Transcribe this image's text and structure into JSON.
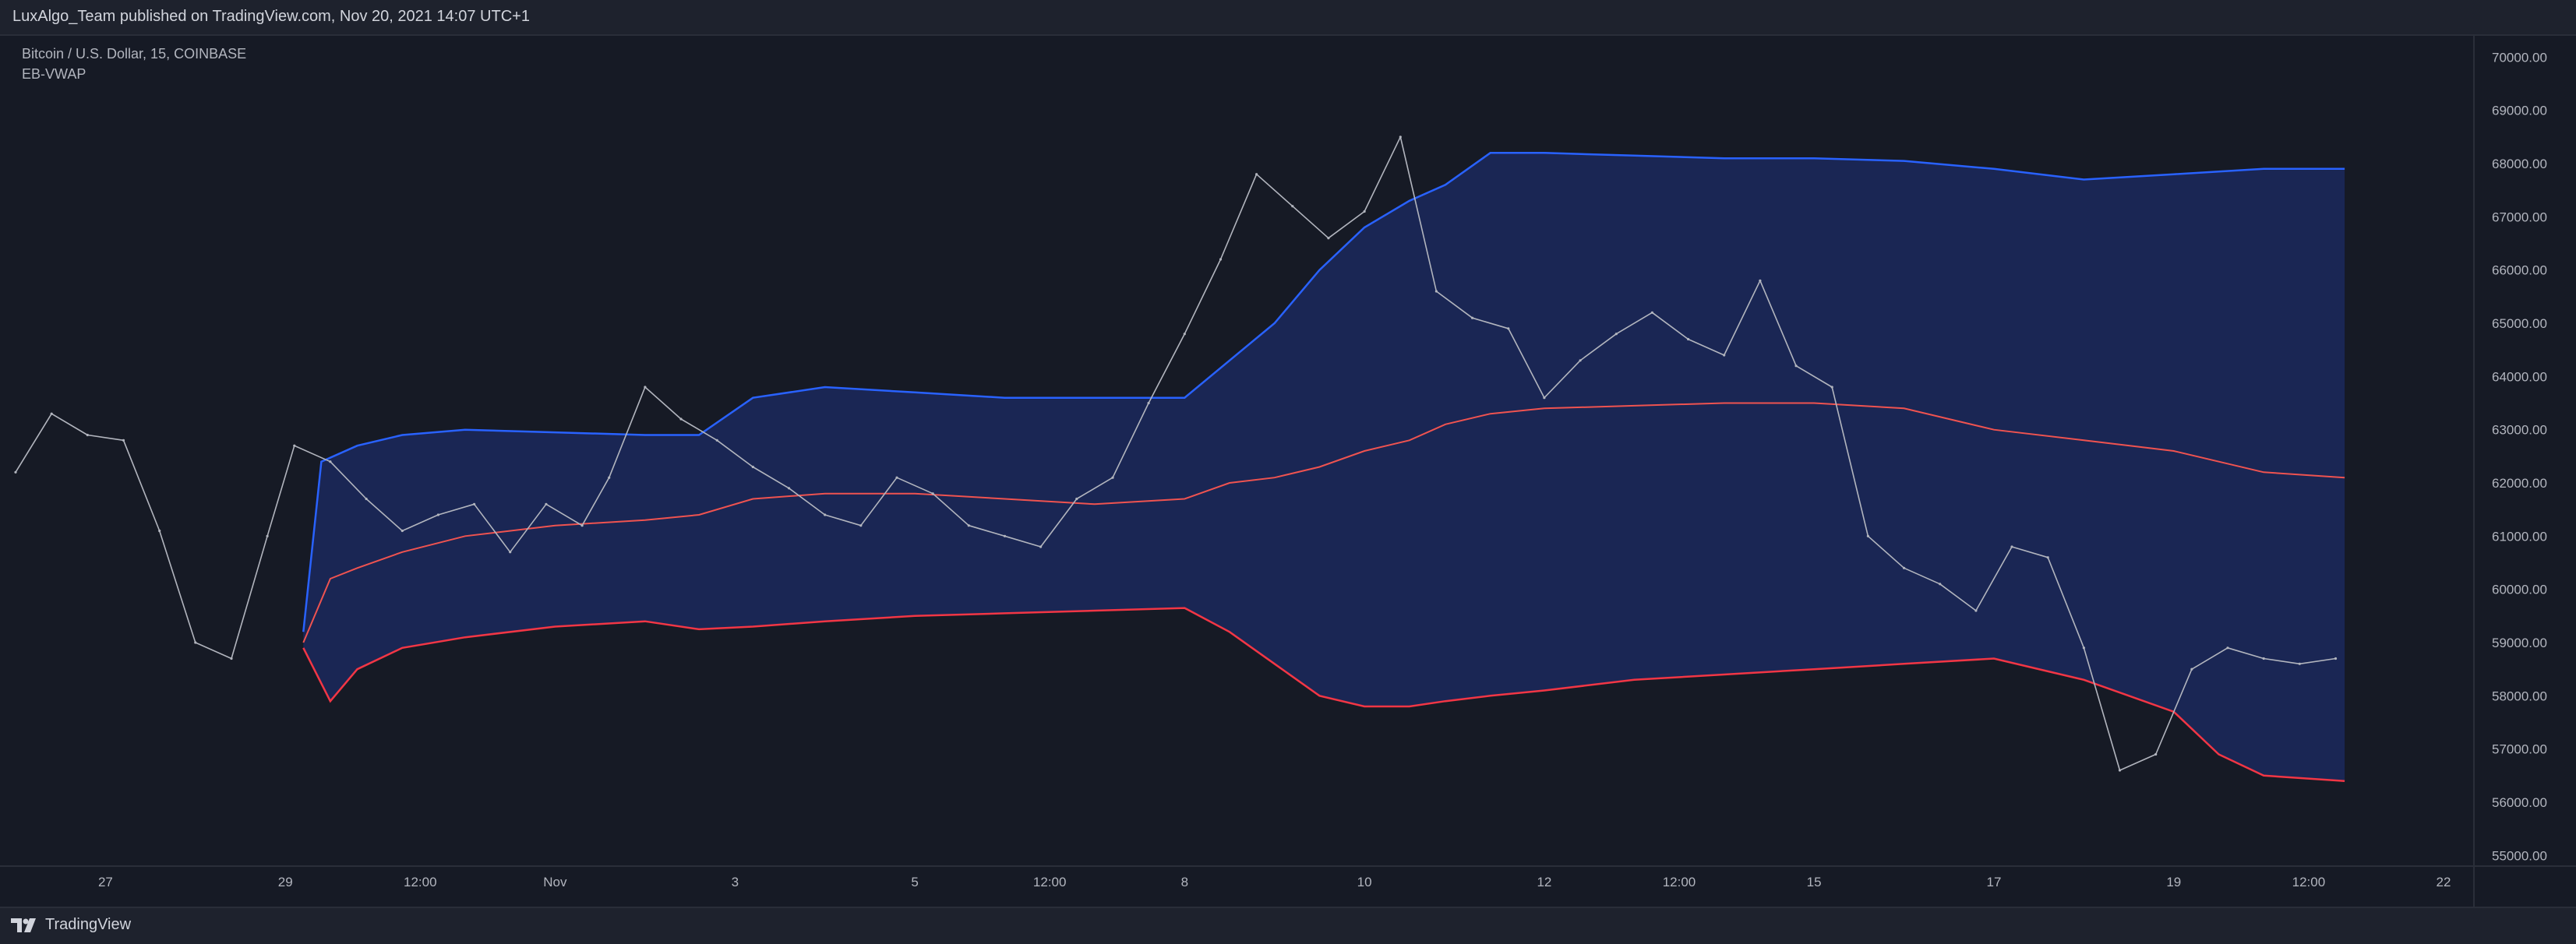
{
  "header": {
    "publisher": "LuxAlgo_Team published on TradingView.com, Nov 20, 2021 14:07 UTC+1"
  },
  "legend": {
    "symbol": "Bitcoin / U.S. Dollar, 15, COINBASE",
    "indicator": "EB-VWAP"
  },
  "footer": {
    "brand": "TradingView"
  },
  "colors": {
    "background": "#161a25",
    "band_fill": "#1a2654",
    "upper_band": "#2962ff",
    "lower_band": "#f23645",
    "vwap": "#ef5350",
    "price": "#b2b5be"
  },
  "chart_data": {
    "type": "line",
    "x_unit": "day index (0 = Oct 26 00:00, 2021)",
    "xlim": [
      0.0,
      27.0
    ],
    "ylim": [
      54800,
      70400
    ],
    "y_ticks": [
      55000,
      56000,
      57000,
      58000,
      59000,
      60000,
      61000,
      62000,
      63000,
      64000,
      65000,
      66000,
      67000,
      68000,
      69000,
      70000
    ],
    "y_tick_labels": [
      "55000.00",
      "56000.00",
      "57000.00",
      "58000.00",
      "59000.00",
      "60000.00",
      "61000.00",
      "62000.00",
      "63000.00",
      "64000.00",
      "65000.00",
      "66000.00",
      "67000.00",
      "68000.00",
      "69000.00",
      "70000.00"
    ],
    "x_ticks": [
      {
        "x": 1.0,
        "label": "27"
      },
      {
        "x": 3.0,
        "label": "29"
      },
      {
        "x": 4.5,
        "label": "12:00"
      },
      {
        "x": 6.0,
        "label": "Nov"
      },
      {
        "x": 8.0,
        "label": "3"
      },
      {
        "x": 10.0,
        "label": "5"
      },
      {
        "x": 11.5,
        "label": "12:00"
      },
      {
        "x": 13.0,
        "label": "8"
      },
      {
        "x": 15.0,
        "label": "10"
      },
      {
        "x": 17.0,
        "label": "12"
      },
      {
        "x": 18.5,
        "label": "12:00"
      },
      {
        "x": 20.0,
        "label": "15"
      },
      {
        "x": 22.0,
        "label": "17"
      },
      {
        "x": 24.0,
        "label": "19"
      },
      {
        "x": 25.5,
        "label": "12:00"
      },
      {
        "x": 27.0,
        "label": "22"
      }
    ],
    "grid": false,
    "series": [
      {
        "key": "price",
        "x": [
          0.0,
          0.4,
          0.8,
          1.2,
          1.6,
          2.0,
          2.4,
          2.8,
          3.1,
          3.5,
          3.9,
          4.3,
          4.7,
          5.1,
          5.5,
          5.9,
          6.3,
          6.6,
          7.0,
          7.4,
          7.8,
          8.2,
          8.6,
          9.0,
          9.4,
          9.8,
          10.2,
          10.6,
          11.0,
          11.4,
          11.8,
          12.2,
          12.6,
          13.0,
          13.4,
          13.8,
          14.2,
          14.6,
          15.0,
          15.4,
          15.8,
          16.2,
          16.6,
          17.0,
          17.4,
          17.8,
          18.2,
          18.6,
          19.0,
          19.4,
          19.8,
          20.2,
          20.6,
          21.0,
          21.4,
          21.8,
          22.2,
          22.6,
          23.0,
          23.4,
          23.8,
          24.2,
          24.6,
          25.0,
          25.4,
          25.8
        ],
        "values": [
          62200,
          63300,
          62900,
          62800,
          61100,
          59000,
          58700,
          61000,
          62700,
          62400,
          61700,
          61100,
          61400,
          61600,
          60700,
          61600,
          61200,
          62100,
          63800,
          63200,
          62800,
          62300,
          61900,
          61400,
          61200,
          62100,
          61800,
          61200,
          61000,
          60800,
          61700,
          62100,
          63500,
          64800,
          66200,
          67800,
          67200,
          66600,
          67100,
          68500,
          65600,
          65100,
          64900,
          63600,
          64300,
          64800,
          65200,
          64700,
          64400,
          65800,
          64200,
          63800,
          61000,
          60400,
          60100,
          59600,
          60800,
          60600,
          58900,
          56600,
          56900,
          58500,
          58900,
          58700,
          58600,
          58700
        ]
      },
      {
        "key": "upper",
        "x": [
          3.2,
          3.4,
          3.8,
          4.3,
          5.0,
          6.0,
          7.0,
          7.6,
          8.2,
          9.0,
          10.0,
          11.0,
          12.0,
          13.0,
          13.5,
          14.0,
          14.5,
          15.0,
          15.5,
          15.9,
          16.4,
          17.0,
          18.0,
          19.0,
          20.0,
          21.0,
          22.0,
          23.0,
          24.0,
          25.0,
          25.9
        ],
        "values": [
          59200,
          62400,
          62700,
          62900,
          63000,
          62950,
          62900,
          62900,
          63600,
          63800,
          63700,
          63600,
          63600,
          63600,
          64300,
          65000,
          66000,
          66800,
          67300,
          67600,
          68200,
          68200,
          68150,
          68100,
          68100,
          68050,
          67900,
          67700,
          67800,
          67900,
          67900
        ]
      },
      {
        "key": "lower",
        "x": [
          3.2,
          3.5,
          3.8,
          4.3,
          5.0,
          6.0,
          7.0,
          7.6,
          8.2,
          9.0,
          10.0,
          11.0,
          12.0,
          13.0,
          13.5,
          14.0,
          14.5,
          15.0,
          15.5,
          15.9,
          16.4,
          17.0,
          18.0,
          19.0,
          20.0,
          21.0,
          22.0,
          23.0,
          24.0,
          24.5,
          25.0,
          25.9
        ],
        "values": [
          58900,
          57900,
          58500,
          58900,
          59100,
          59300,
          59400,
          59250,
          59300,
          59400,
          59500,
          59550,
          59600,
          59650,
          59200,
          58600,
          58000,
          57800,
          57800,
          57900,
          58000,
          58100,
          58300,
          58400,
          58500,
          58600,
          58700,
          58300,
          57700,
          56900,
          56500,
          56400
        ]
      },
      {
        "key": "vwap",
        "x": [
          3.2,
          3.5,
          3.8,
          4.3,
          5.0,
          6.0,
          7.0,
          7.6,
          8.2,
          9.0,
          10.0,
          11.0,
          12.0,
          13.0,
          13.5,
          14.0,
          14.5,
          15.0,
          15.5,
          15.9,
          16.4,
          17.0,
          18.0,
          19.0,
          20.0,
          21.0,
          22.0,
          23.0,
          24.0,
          25.0,
          25.9
        ],
        "values": [
          59000,
          60200,
          60400,
          60700,
          61000,
          61200,
          61300,
          61400,
          61700,
          61800,
          61800,
          61700,
          61600,
          61700,
          62000,
          62100,
          62300,
          62600,
          62800,
          63100,
          63300,
          63400,
          63450,
          63500,
          63500,
          63400,
          63000,
          62800,
          62600,
          62200,
          62100
        ]
      }
    ]
  }
}
